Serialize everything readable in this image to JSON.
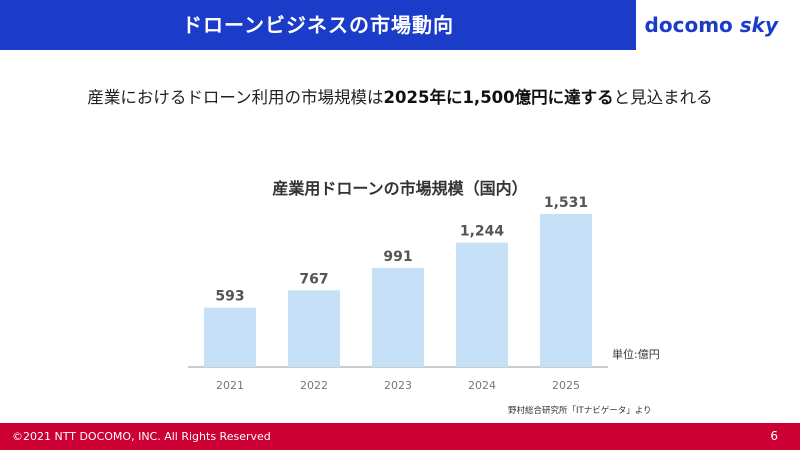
{
  "header": {
    "title": "ドローンビジネスの市場動向",
    "logo_main": "docomo",
    "logo_sub": "sky",
    "brand_color": "#1a3cc8"
  },
  "headline": {
    "part1": "産業におけるドローン利用の市場規模は",
    "emphasis": "2025年に1,500億円に達する",
    "part2": "と見込まれる"
  },
  "chart_data": {
    "type": "bar",
    "title": "産業用ドローンの市場規模（国内）",
    "categories": [
      "2021",
      "2022",
      "2023",
      "2024",
      "2025"
    ],
    "values": [
      593,
      767,
      991,
      1244,
      1531
    ],
    "value_labels": [
      "593",
      "767",
      "991",
      "1,244",
      "1,531"
    ],
    "ylim": [
      0,
      1600
    ],
    "xlabel": "",
    "ylabel": "",
    "grid": false,
    "bar_color": "#c5e0f7",
    "unit_label": "単位:億円",
    "source": "野村総合研究所「ITナビゲータ」より"
  },
  "footer": {
    "copyright": "©2021 NTT DOCOMO, INC. All Rights Reserved",
    "page_number": "6",
    "color": "#cc0033"
  }
}
